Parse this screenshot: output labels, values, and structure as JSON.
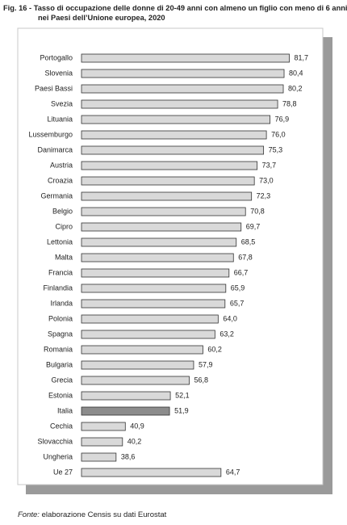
{
  "chart_data": {
    "type": "bar",
    "orientation": "horizontal",
    "title": [
      "Fig. 16 - Tasso di occupazione delle donne di 20-49 anni con almeno un figlio con meno di 6 anni",
      "nei Paesi dell’Unione europea, 2020"
    ],
    "categories": [
      "Portogallo",
      "Slovenia",
      "Paesi Bassi",
      "Svezia",
      "Lituania",
      "Lussemburgo",
      "Danimarca",
      "Austria",
      "Croazia",
      "Germania",
      "Belgio",
      "Cipro",
      "Lettonia",
      "Malta",
      "Francia",
      "Finlandia",
      "Irlanda",
      "Polonia",
      "Spagna",
      "Romania",
      "Bulgaria",
      "Grecia",
      "Estonia",
      "Italia",
      "Cechia",
      "Slovacchia",
      "Ungheria",
      "Ue 27"
    ],
    "values": [
      81.7,
      80.4,
      80.2,
      78.8,
      76.9,
      76.0,
      75.3,
      73.7,
      73.0,
      72.3,
      70.8,
      69.7,
      68.5,
      67.8,
      66.7,
      65.9,
      65.7,
      64.0,
      63.2,
      60.2,
      57.9,
      56.8,
      52.1,
      51.9,
      40.9,
      40.2,
      38.6,
      64.7
    ],
    "value_labels": [
      "81,7",
      "80,4",
      "80,2",
      "78,8",
      "76,9",
      "76,0",
      "75,3",
      "73,7",
      "73,0",
      "72,3",
      "70,8",
      "69,7",
      "68,5",
      "67,8",
      "66,7",
      "65,9",
      "65,7",
      "64,0",
      "63,2",
      "60,2",
      "57,9",
      "56,8",
      "52,1",
      "51,9",
      "40,9",
      "40,2",
      "38,6",
      "64,7"
    ],
    "colors": [
      "#d9d9d9",
      "#d9d9d9",
      "#d9d9d9",
      "#d9d9d9",
      "#d9d9d9",
      "#d9d9d9",
      "#d9d9d9",
      "#d9d9d9",
      "#d9d9d9",
      "#d9d9d9",
      "#d9d9d9",
      "#d9d9d9",
      "#d9d9d9",
      "#d9d9d9",
      "#d9d9d9",
      "#d9d9d9",
      "#d9d9d9",
      "#d9d9d9",
      "#d9d9d9",
      "#d9d9d9",
      "#d9d9d9",
      "#d9d9d9",
      "#d9d9d9",
      "#8c8c8c",
      "#d9d9d9",
      "#d9d9d9",
      "#d9d9d9",
      "#d9d9d9"
    ],
    "xlim": [
      30,
      82
    ],
    "source_label": "Fonte:",
    "source": "elaborazione Censis su dati Eurostat"
  }
}
